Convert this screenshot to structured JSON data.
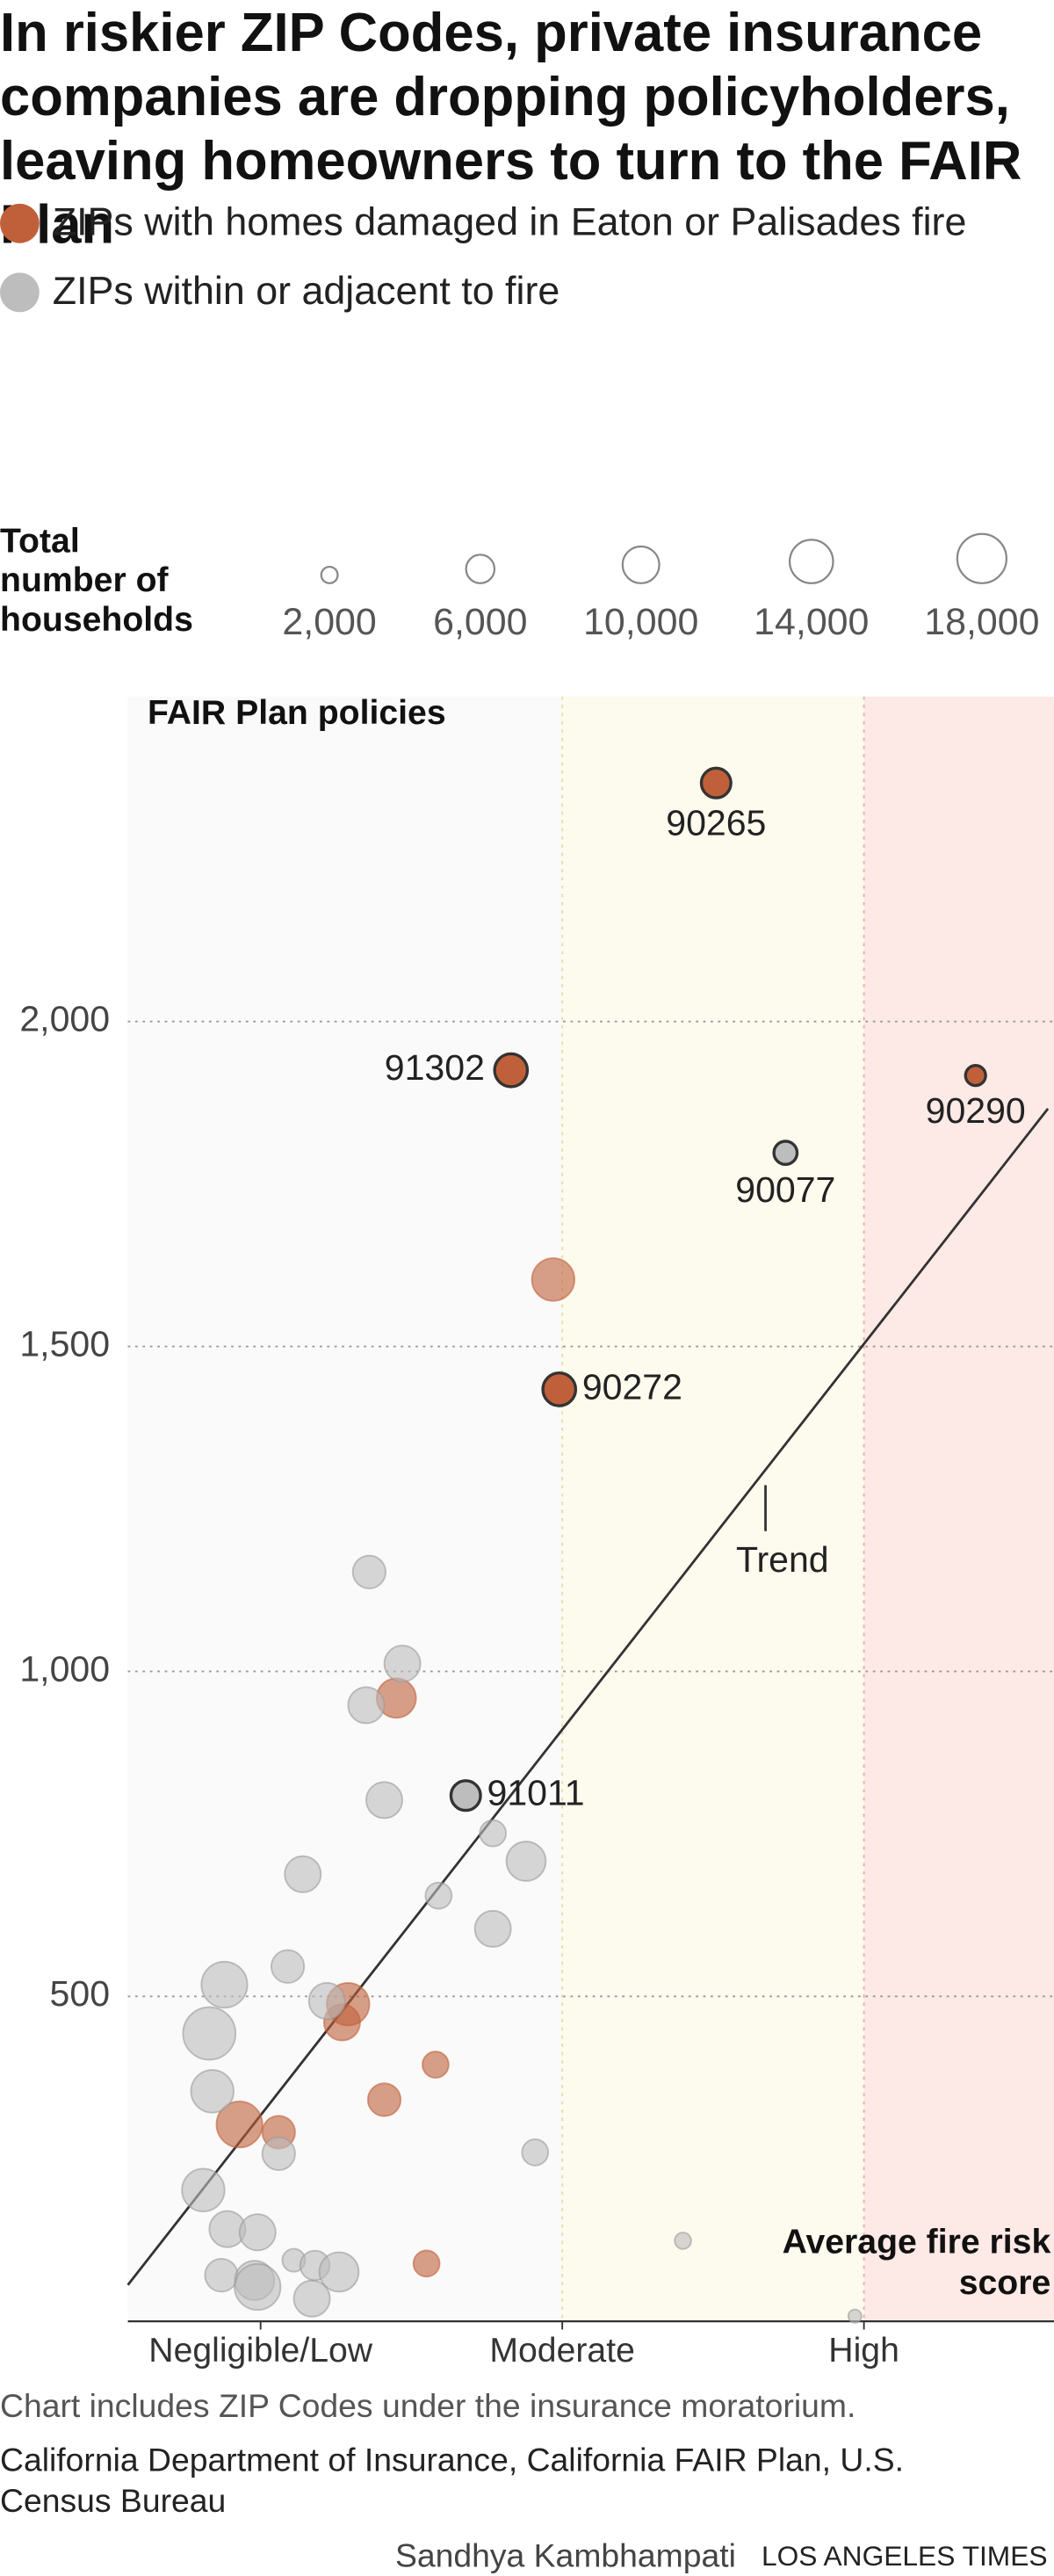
{
  "chart_data": {
    "type": "scatter",
    "title": "In riskier ZIP Codes, private insurance companies are dropping policyholders, leaving homeowners to turn to the FAIR Plan",
    "y_label": "FAIR Plan policies",
    "x_label": "Average fire risk score",
    "xlim": [
      0.56,
      3.63
    ],
    "xticks": [
      {
        "value": 1,
        "label": "Negligible/Low"
      },
      {
        "value": 2,
        "label": "Moderate"
      },
      {
        "value": 3,
        "label": "High"
      }
    ],
    "ylim": [
      0,
      2500
    ],
    "yticks": [
      500,
      {
        "value": 1000,
        "label": "1,000"
      },
      {
        "value": 1500,
        "label": "1,500"
      },
      {
        "value": 2000,
        "label": "2,000"
      }
    ],
    "grid": true,
    "size_legend": {
      "title": "Total number of households",
      "values": [
        2000,
        6000,
        10000,
        14000,
        18000
      ],
      "value_labels": [
        "2,000",
        "6,000",
        "10,000",
        "14,000",
        "18,000"
      ]
    },
    "series": [
      {
        "name": "ZIPs with homes damaged in Eaton or Palisades fire",
        "color": "#c0603a",
        "x": [
          2.51,
          1.83,
          3.37,
          1.99,
          1.97,
          1.45,
          1.29,
          1.27,
          1.58,
          1.41,
          0.93,
          1.06,
          1.55
        ],
        "values": [
          2367,
          1925,
          1917,
          1434,
          1603,
          959,
          488,
          460,
          395,
          341,
          303,
          291,
          89
        ],
        "sizes": [
          6500,
          8000,
          3000,
          8000,
          13500,
          11500,
          13500,
          9700,
          5100,
          8000,
          15700,
          8000,
          5100
        ],
        "labels": [
          "90265",
          "91302",
          "90290",
          "90272",
          null,
          null,
          null,
          null,
          null,
          null,
          null,
          null,
          null
        ]
      },
      {
        "name": "ZIPs within or adjacent to fire",
        "color": "#bdbdbd",
        "x": [
          2.74,
          1.68,
          1.36,
          1.47,
          1.35,
          1.41,
          1.14,
          1.77,
          1.88,
          1.59,
          1.77,
          1.09,
          0.88,
          1.22,
          0.83,
          0.84,
          0.81,
          1.91,
          1.06,
          0.89,
          0.99,
          0.87,
          0.98,
          0.99,
          1.11,
          1.18,
          1.26,
          1.17,
          2.4,
          2.97
        ],
        "values": [
          1798,
          809,
          1153,
          1012,
          948,
          802,
          688,
          751,
          708,
          655,
          604,
          546,
          518,
          493,
          443,
          354,
          202,
          260,
          258,
          142,
          137,
          71,
          63,
          53,
          94,
          86,
          76,
          35,
          124,
          8
        ],
        "sizes": [
          4000,
          6500,
          8000,
          9700,
          9700,
          9700,
          9700,
          5100,
          11500,
          5100,
          9700,
          8000,
          15700,
          9700,
          20500,
          13500,
          13500,
          5100,
          8000,
          9700,
          9700,
          8000,
          11500,
          15700,
          3900,
          6500,
          11500,
          9700,
          2000,
          1300
        ],
        "labels": [
          "90077",
          "91011",
          null,
          null,
          null,
          null,
          null,
          null,
          null,
          null,
          null,
          null,
          null,
          null,
          null,
          null,
          null,
          null,
          null,
          null,
          null,
          null,
          null,
          null,
          null,
          null,
          null,
          null,
          null,
          null
        ]
      }
    ],
    "trend": {
      "label": "Trend",
      "x": [
        0.56,
        3.61
      ],
      "y": [
        56,
        1866
      ]
    },
    "note": "Chart includes ZIP Codes under the insurance moratorium.",
    "source": "California Department of Insurance, California FAIR Plan, U.S. Census Bureau",
    "credit": "Sandhya Kambhampati",
    "publisher": "LOS ANGELES TIMES"
  }
}
